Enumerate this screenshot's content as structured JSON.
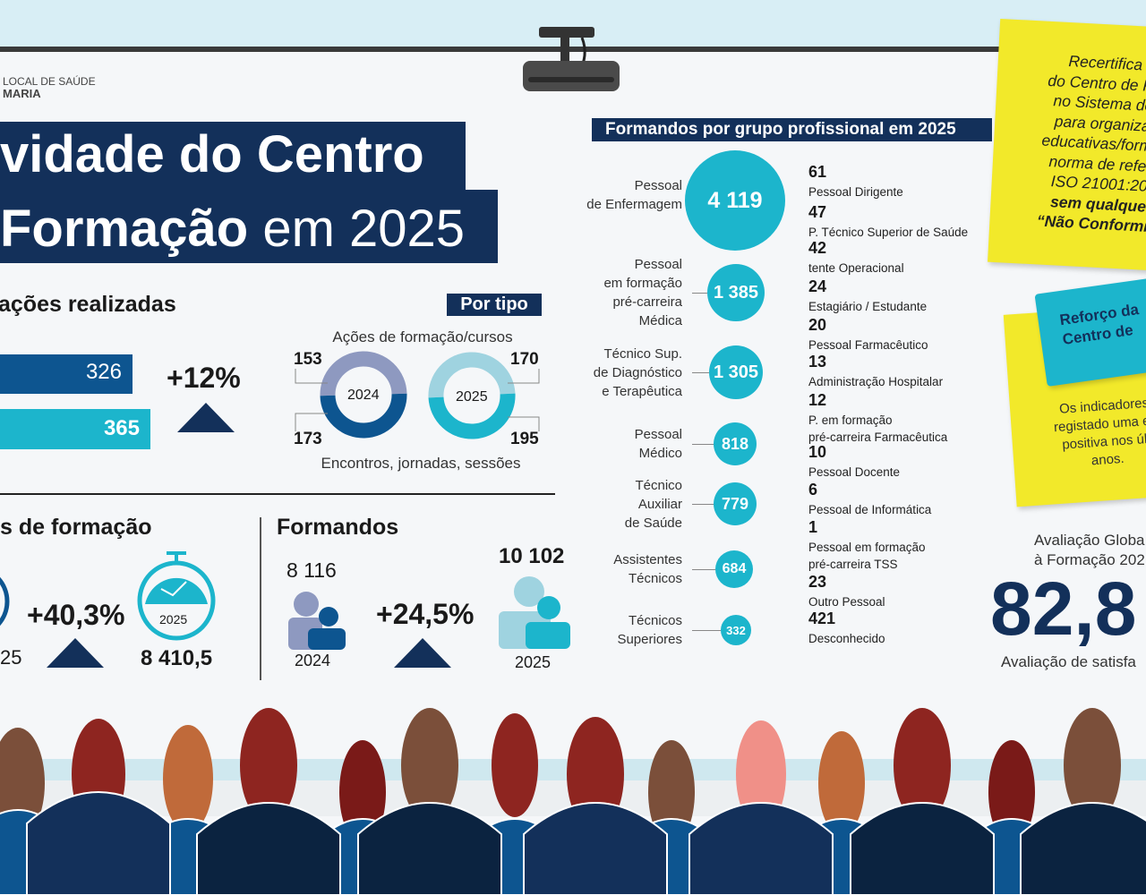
{
  "logo": {
    "line1": "LOCAL DE SAÚDE",
    "line2": "MARIA"
  },
  "title": {
    "line1": "vidade do Centro",
    "line2_bold": "Formação",
    "line2_rest": " em 2025"
  },
  "acoes": {
    "heading": "ações realizadas",
    "value_2024": "326",
    "value_2025": "365",
    "change": "+12%",
    "por_tipo": "Por tipo",
    "donut_top_label": "Ações de formação/cursos",
    "donut_bottom_label": "Encontros, jornadas, sessões",
    "donut_2024": {
      "year": "2024",
      "cursos": "153",
      "encontros": "173"
    },
    "donut_2025": {
      "year": "2025",
      "cursos": "170",
      "encontros": "195"
    }
  },
  "horas": {
    "heading": "s de formação",
    "value_2024_partial": "25",
    "change": "+40,3%",
    "year_2025": "2025",
    "value_2025": "8 410,5"
  },
  "formandos": {
    "heading": "Formandos",
    "value_2024": "8 116",
    "year_2024": "2024",
    "change": "+24,5%",
    "value_2025": "10 102",
    "year_2025": "2025"
  },
  "grupos": {
    "heading": "Formandos por grupo profissional em 2025",
    "bubbles": [
      {
        "label": [
          "Pessoal",
          "de Enfermagem"
        ],
        "value": "4 119"
      },
      {
        "label": [
          "Pessoal",
          "em formação",
          "pré-carreira",
          "Médica"
        ],
        "value": "1 385"
      },
      {
        "label": [
          "Técnico Sup.",
          "de Diagnóstico",
          "e Terapêutica"
        ],
        "value": "1 305"
      },
      {
        "label": [
          "Pessoal",
          "Médico"
        ],
        "value": "818"
      },
      {
        "label": [
          "Técnico",
          "Auxiliar",
          "de Saúde"
        ],
        "value": "779"
      },
      {
        "label": [
          "Assistentes",
          "Técnicos"
        ],
        "value": "684"
      },
      {
        "label": [
          "Técnicos",
          "Superiores"
        ],
        "value": "332"
      }
    ],
    "list": [
      {
        "value": "61",
        "label": [
          "Pessoal Dirigente"
        ]
      },
      {
        "value": "47",
        "label": [
          "P. Técnico Superior de Saúde"
        ]
      },
      {
        "value": "42",
        "label": [
          "tente Operacional"
        ]
      },
      {
        "value": "24",
        "label": [
          "Estagiário / Estudante"
        ]
      },
      {
        "value": "20",
        "label": [
          "Pessoal Farmacêutico"
        ]
      },
      {
        "value": "13",
        "label": [
          "Administração Hospitalar"
        ]
      },
      {
        "value": "12",
        "label": [
          "P. em formação",
          "pré-carreira Farmacêutica"
        ]
      },
      {
        "value": "10",
        "label": [
          "Pessoal Docente"
        ]
      },
      {
        "value": "6",
        "label": [
          "Pessoal de Informática"
        ]
      },
      {
        "value": "1",
        "label": [
          "Pessoal em formação",
          "pré-carreira TSS"
        ]
      },
      {
        "value": "23",
        "label": [
          "Outro Pessoal"
        ]
      },
      {
        "value": "421",
        "label": [
          "Desconhecido"
        ]
      }
    ]
  },
  "note1": {
    "lines": [
      "Recertifica",
      "do Centro de Fo",
      "no Sistema de",
      "para organiza",
      "educativas/forma",
      "norma de refer",
      "ISO 21001:20"
    ],
    "bold_lines": [
      "sem qualque",
      "“Não Conformid"
    ]
  },
  "note2": {
    "tag": [
      "Reforço da",
      "Centro de"
    ],
    "lines": [
      "Os indicadores",
      "registado uma ev",
      "positiva nos últ",
      "anos."
    ]
  },
  "avaliacao": {
    "line1": "Avaliação Globa",
    "line2": "à Formação 202",
    "value": "82,8",
    "caption": "Avaliação de satisfa"
  },
  "colors": {
    "navy": "#13305a",
    "blue": "#0d5590",
    "cyan": "#1cb5cc",
    "yellow": "#f2e92a"
  }
}
